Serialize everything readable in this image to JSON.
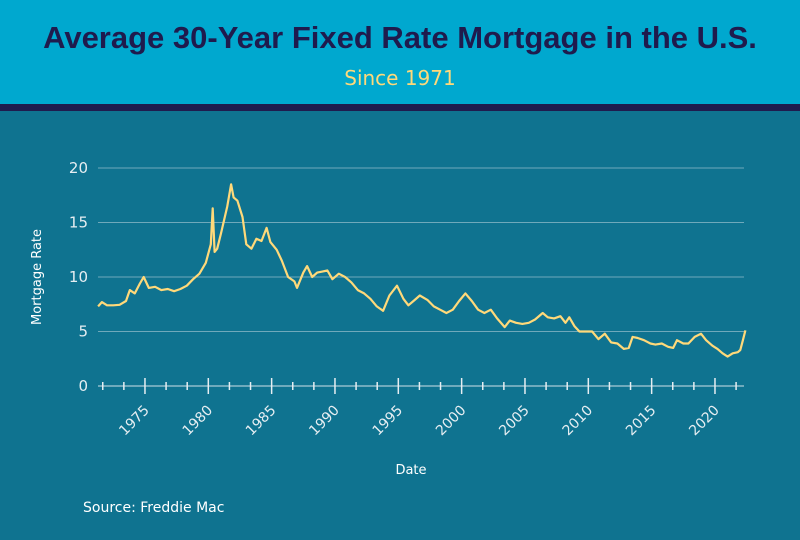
{
  "header": {
    "title": "Average 30-Year Fixed Rate Mortgage in the U.S.",
    "subtitle": "Since 1971"
  },
  "source": "Source: Freddie Mac",
  "colors": {
    "header": "#00a8cf",
    "title": "#1f1b4d",
    "band": "#1f1b4d",
    "background": "#0f7390",
    "line": "#ffd97a",
    "grid": "#6fa9bb"
  },
  "chart_data": {
    "type": "line",
    "xlabel": "Date",
    "ylabel": "Mortgage Rate",
    "xlim": [
      1971,
      2022.5
    ],
    "ylim": [
      0,
      20
    ],
    "yticks": [
      0,
      5,
      10,
      15,
      20
    ],
    "xticks": [
      1975,
      1980,
      1985,
      1990,
      1995,
      2000,
      2005,
      2010,
      2015,
      2020
    ],
    "xtick_labels": [
      "1975",
      "1980",
      "1985",
      "1990",
      "1995",
      "2000",
      "2005",
      "2010",
      "2015",
      "2020"
    ],
    "ytick_labels": [
      "0",
      "5",
      "10",
      "15",
      "20"
    ],
    "grid": "horizontal",
    "series": [
      {
        "x": [
          1971.3,
          1971.6,
          1972.0,
          1972.5,
          1973.0,
          1973.5,
          1973.8,
          1974.2,
          1974.6,
          1974.9,
          1975.3,
          1975.8,
          1976.3,
          1976.8,
          1977.3,
          1977.8,
          1978.3,
          1978.8,
          1979.3,
          1979.8,
          1980.2,
          1980.35,
          1980.5,
          1980.7,
          1981.0,
          1981.5,
          1981.8,
          1982.0,
          1982.3,
          1982.7,
          1983.0,
          1983.4,
          1983.8,
          1984.2,
          1984.6,
          1984.9,
          1985.4,
          1985.8,
          1986.3,
          1986.8,
          1987.0,
          1987.5,
          1987.8,
          1988.2,
          1988.6,
          1989.0,
          1989.4,
          1989.8,
          1990.3,
          1990.8,
          1991.3,
          1991.8,
          1992.3,
          1992.8,
          1993.3,
          1993.8,
          1994.3,
          1994.9,
          1995.4,
          1995.8,
          1996.3,
          1996.7,
          1997.3,
          1997.8,
          1998.3,
          1998.8,
          1999.3,
          1999.8,
          2000.3,
          2000.8,
          2001.3,
          2001.8,
          2002.3,
          2002.8,
          2003.4,
          2003.8,
          2004.3,
          2004.8,
          2005.3,
          2005.8,
          2006.4,
          2006.8,
          2007.3,
          2007.8,
          2008.2,
          2008.5,
          2008.9,
          2009.3,
          2009.8,
          2010.3,
          2010.8,
          2011.3,
          2011.8,
          2012.3,
          2012.8,
          2013.2,
          2013.5,
          2013.9,
          2014.4,
          2014.9,
          2015.3,
          2015.8,
          2016.3,
          2016.7,
          2017.0,
          2017.5,
          2017.9,
          2018.4,
          2018.9,
          2019.3,
          2019.8,
          2020.2,
          2020.6,
          2021.0,
          2021.4,
          2021.8,
          2022.0,
          2022.2,
          2022.4
        ],
        "y": [
          7.3,
          7.7,
          7.4,
          7.4,
          7.45,
          7.8,
          8.8,
          8.5,
          9.4,
          10.0,
          9.0,
          9.1,
          8.8,
          8.9,
          8.7,
          8.9,
          9.2,
          9.8,
          10.3,
          11.3,
          13.0,
          16.3,
          12.3,
          12.6,
          14.0,
          16.5,
          18.5,
          17.3,
          17.0,
          15.5,
          13.0,
          12.6,
          13.5,
          13.3,
          14.5,
          13.2,
          12.5,
          11.5,
          10.0,
          9.6,
          9.0,
          10.4,
          11.0,
          10.0,
          10.4,
          10.5,
          10.6,
          9.8,
          10.3,
          10.0,
          9.5,
          8.8,
          8.5,
          8.0,
          7.3,
          6.9,
          8.3,
          9.2,
          8.0,
          7.4,
          7.9,
          8.3,
          7.9,
          7.3,
          7.0,
          6.7,
          7.0,
          7.8,
          8.5,
          7.8,
          7.0,
          6.7,
          7.0,
          6.2,
          5.4,
          6.0,
          5.8,
          5.7,
          5.8,
          6.1,
          6.7,
          6.3,
          6.2,
          6.4,
          5.8,
          6.3,
          5.5,
          5.0,
          5.0,
          5.0,
          4.3,
          4.8,
          4.0,
          3.9,
          3.4,
          3.5,
          4.5,
          4.4,
          4.2,
          3.9,
          3.8,
          3.9,
          3.6,
          3.5,
          4.2,
          3.9,
          3.9,
          4.5,
          4.8,
          4.2,
          3.7,
          3.4,
          3.0,
          2.7,
          3.0,
          3.1,
          3.3,
          4.2,
          5.1
        ]
      }
    ]
  }
}
